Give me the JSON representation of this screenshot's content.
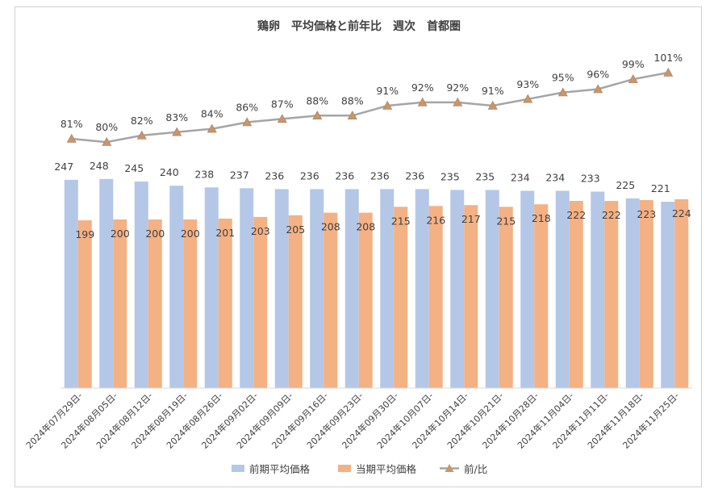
{
  "chart_data": {
    "type": "bar",
    "title": "鶏卵　平均価格と前年比　週次　首都圏",
    "categories": [
      "2024年07月29日-",
      "2024年08月05日-",
      "2024年08月12日-",
      "2024年08月19日-",
      "2024年08月26日-",
      "2024年09月02日-",
      "2024年09月09日-",
      "2024年09月16日-",
      "2024年09月23日-",
      "2024年09月30日-",
      "2024年10月07日-",
      "2024年10月14日-",
      "2024年10月21日-",
      "2024年10月28日-",
      "2024年11月04日-",
      "2024年11月11日-",
      "2024年11月18日-",
      "2024年11月25日-"
    ],
    "series": [
      {
        "name": "前期平均価格",
        "type": "bar",
        "color": "#b4c7e7",
        "values": [
          247,
          248,
          245,
          240,
          238,
          237,
          236,
          236,
          236,
          236,
          236,
          235,
          235,
          234,
          234,
          233,
          225,
          221
        ]
      },
      {
        "name": "当期平均価格",
        "type": "bar",
        "color": "#f4b183",
        "values": [
          199,
          200,
          200,
          200,
          201,
          203,
          205,
          208,
          208,
          215,
          216,
          217,
          215,
          218,
          222,
          222,
          223,
          224
        ]
      },
      {
        "name": "前/比",
        "type": "line",
        "color": "#a5a5a5",
        "marker": "triangle",
        "marker_color": "#c9956b",
        "values": [
          81,
          80,
          82,
          83,
          84,
          86,
          87,
          88,
          88,
          91,
          92,
          92,
          91,
          93,
          95,
          96,
          99,
          101
        ],
        "labels": [
          "81%",
          "80%",
          "82%",
          "83%",
          "84%",
          "86%",
          "87%",
          "88%",
          "88%",
          "91%",
          "92%",
          "92%",
          "91%",
          "93%",
          "95%",
          "96%",
          "99%",
          "101%"
        ]
      }
    ],
    "legend_position": "bottom",
    "grid": false
  }
}
